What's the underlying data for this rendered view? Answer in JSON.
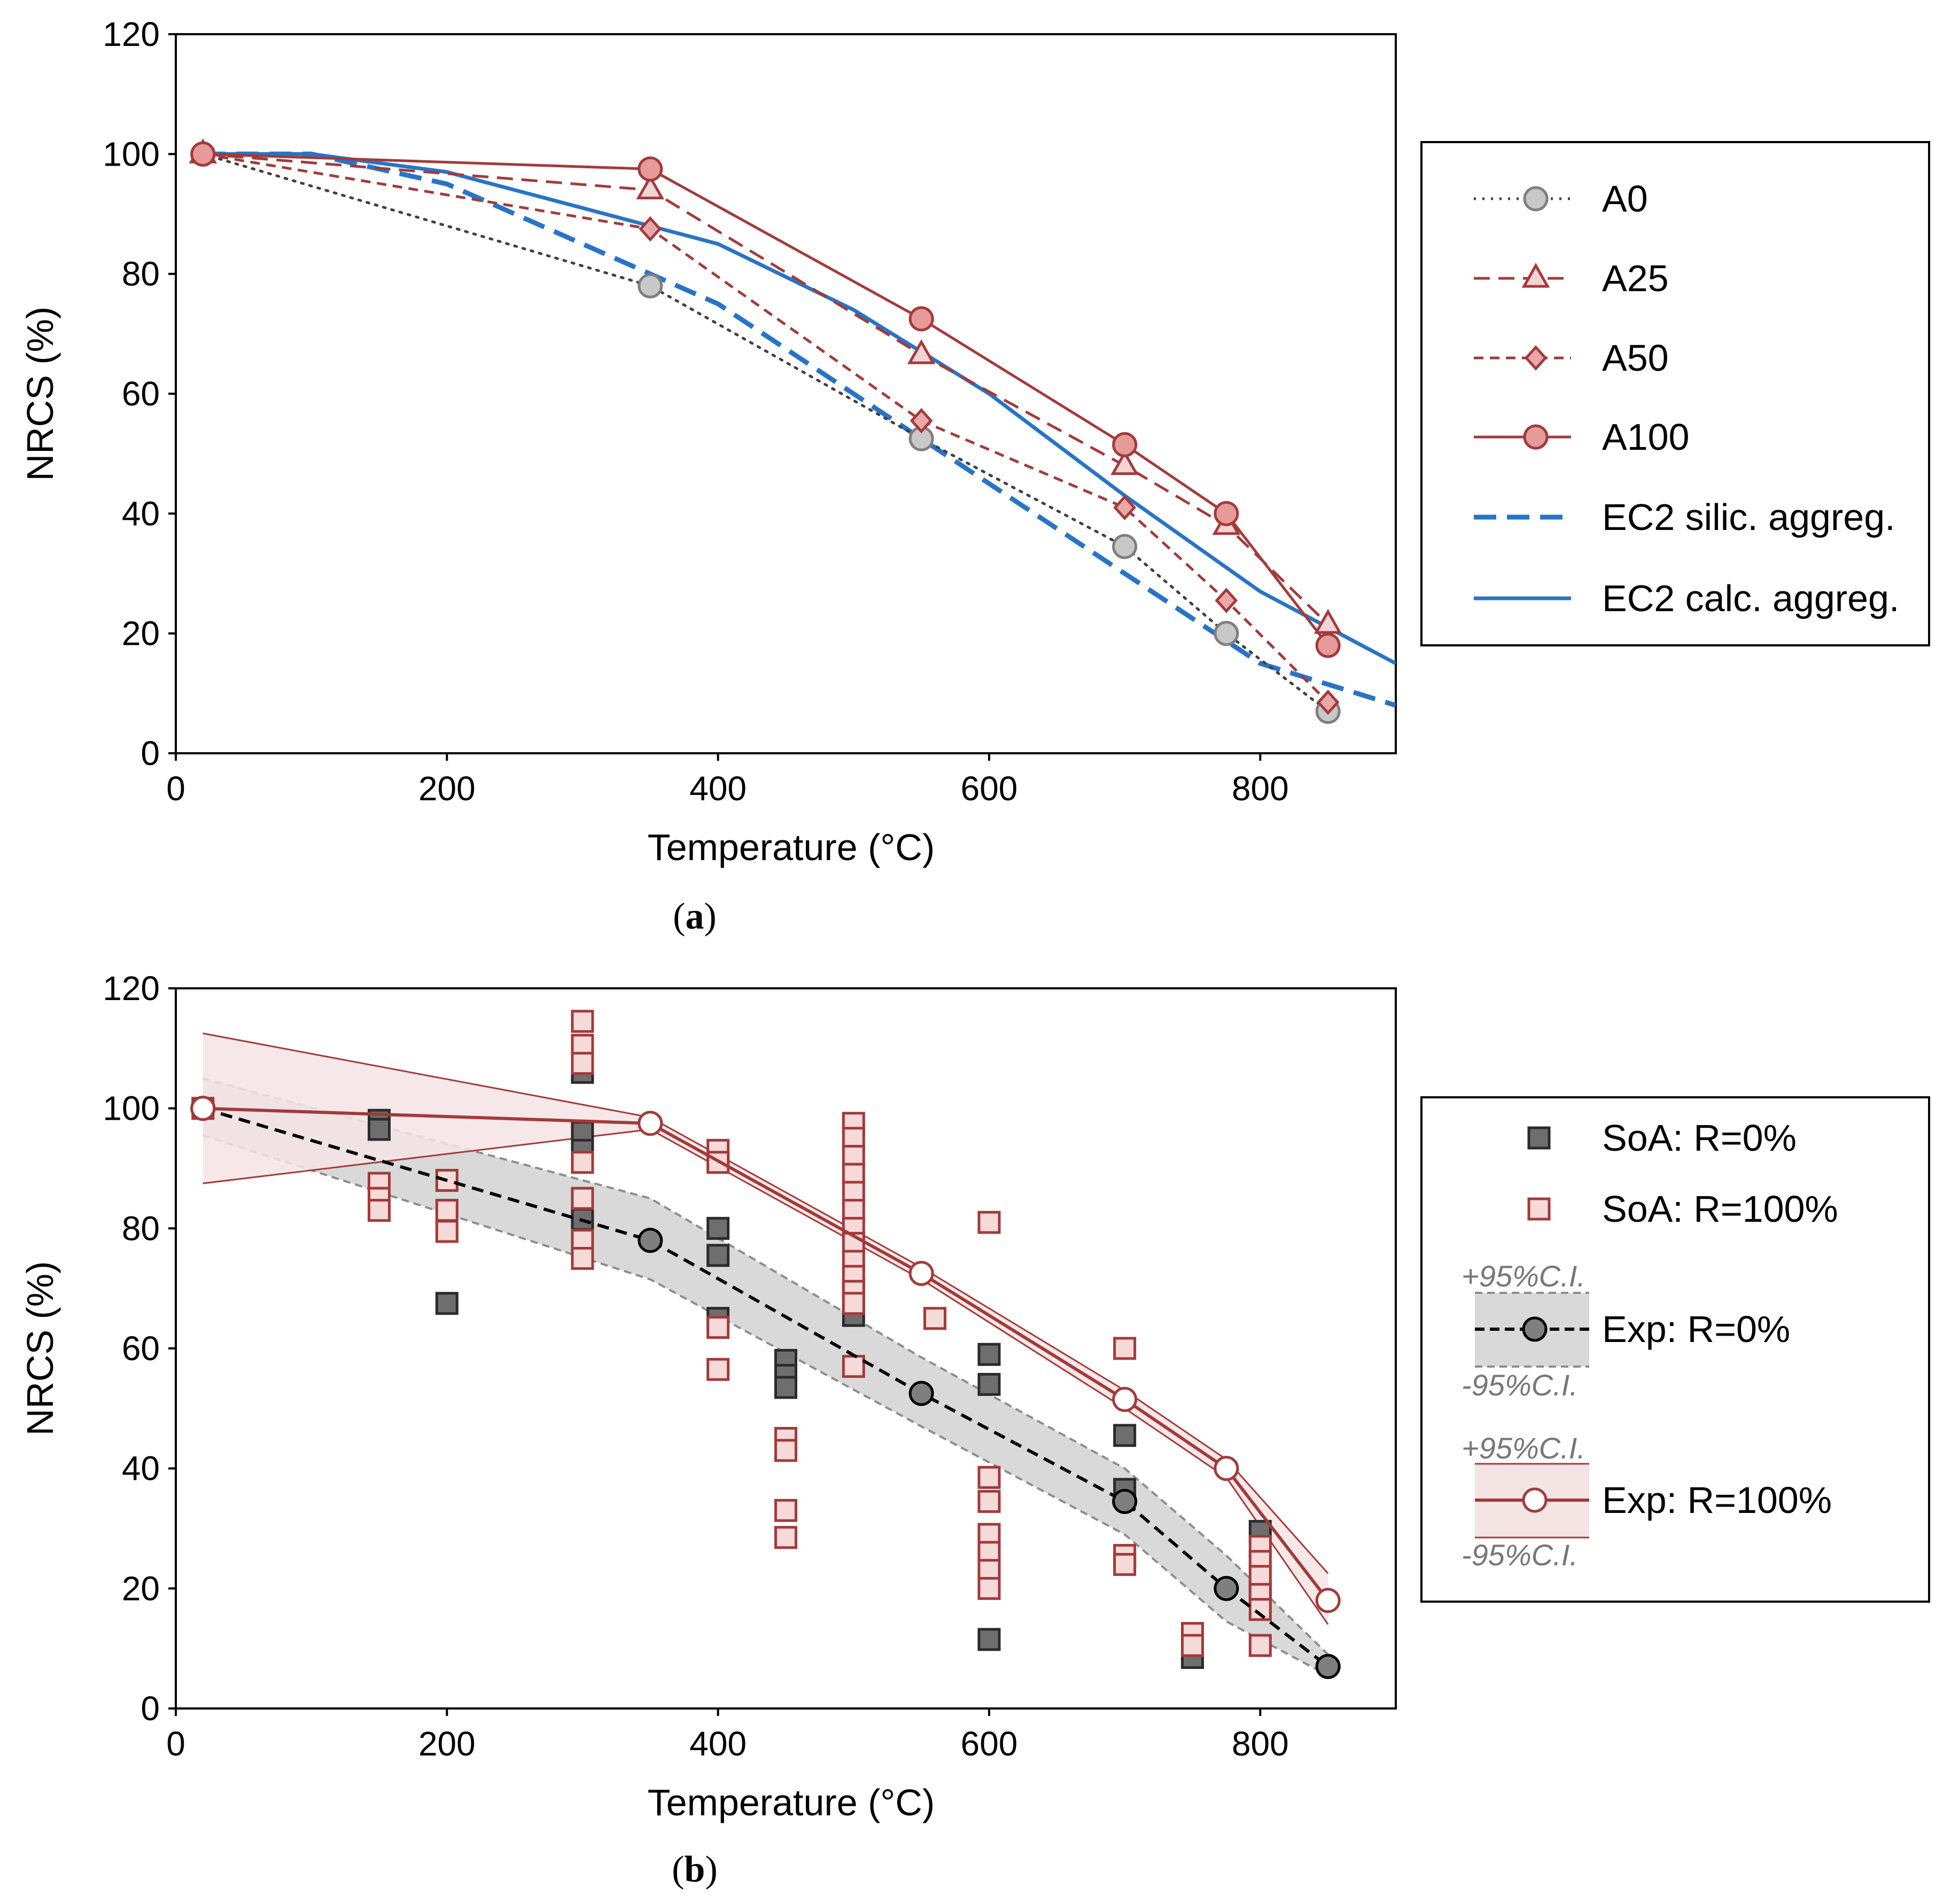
{
  "chart_data": [
    {
      "type": "line",
      "panel": "a",
      "caption": "(a)",
      "caption_letter": "a",
      "xlabel": "Temperature (°C)",
      "ylabel": "NRCS (%)",
      "xlim": [
        0,
        900
      ],
      "ylim": [
        0,
        120
      ],
      "xticks": [
        0,
        200,
        400,
        600,
        800
      ],
      "yticks": [
        0,
        20,
        40,
        60,
        80,
        100,
        120
      ],
      "legend_position": "right",
      "series": [
        {
          "name": "A0",
          "color": "#404040",
          "marker": "circle",
          "marker_fill": "#c8c8c8",
          "marker_stroke": "#7f7f7f",
          "dash": "dot",
          "x": [
            20,
            350,
            550,
            700,
            775,
            850
          ],
          "y": [
            100,
            78,
            52.5,
            34.5,
            20,
            7
          ]
        },
        {
          "name": "A25",
          "color": "#a33a3a",
          "marker": "triangle",
          "marker_fill": "#f2d4d4",
          "marker_stroke": "#a33a3a",
          "dash": "dash",
          "x": [
            20,
            350,
            550,
            700,
            775,
            850
          ],
          "y": [
            100,
            94,
            66.5,
            48,
            38,
            21.5
          ]
        },
        {
          "name": "A50",
          "color": "#a33a3a",
          "marker": "diamond",
          "marker_fill": "#e9a8a8",
          "marker_stroke": "#a33a3a",
          "dash": "shortdash",
          "x": [
            20,
            350,
            550,
            700,
            775,
            850
          ],
          "y": [
            100,
            87.5,
            55.5,
            41,
            25.5,
            8.5
          ]
        },
        {
          "name": "A100",
          "color": "#a33a3a",
          "marker": "circle",
          "marker_fill": "#e69a9a",
          "marker_stroke": "#a33a3a",
          "dash": "solid",
          "x": [
            20,
            350,
            550,
            700,
            775,
            850
          ],
          "y": [
            100,
            97.5,
            72.5,
            51.5,
            40,
            18
          ]
        },
        {
          "name": "EC2 silic. aggreg.",
          "color": "#2874c6",
          "marker": "none",
          "dash": "longdash",
          "width": 9,
          "x": [
            20,
            100,
            200,
            300,
            400,
            500,
            600,
            700,
            800,
            900
          ],
          "y": [
            100,
            100,
            95,
            85,
            75,
            60,
            45,
            30,
            15,
            8
          ]
        },
        {
          "name": "EC2 calc. aggreg.",
          "color": "#2874c6",
          "marker": "none",
          "dash": "solid",
          "width": 7,
          "x": [
            20,
            100,
            200,
            300,
            400,
            500,
            600,
            700,
            800,
            900
          ],
          "y": [
            100,
            100,
            97,
            91,
            85,
            74,
            60,
            43,
            27,
            15
          ]
        }
      ]
    },
    {
      "type": "scatter",
      "panel": "b",
      "caption": "(b)",
      "caption_letter": "b",
      "xlabel": "Temperature (°C)",
      "ylabel": "NRCS (%)",
      "xlim": [
        0,
        900
      ],
      "ylim": [
        0,
        120
      ],
      "xticks": [
        0,
        200,
        400,
        600,
        800
      ],
      "yticks": [
        0,
        20,
        40,
        60,
        80,
        100,
        120
      ],
      "legend_position": "right",
      "ci_labels": {
        "upper": "+95%C.I.",
        "lower": "-95%C.I."
      },
      "scatter_series": [
        {
          "name": "SoA: R=0%",
          "marker": "square",
          "fill": "#6e6e6e",
          "stroke": "#2b2b2b",
          "points": [
            [
              150,
              98
            ],
            [
              150,
              96.5
            ],
            [
              200,
              67.5
            ],
            [
              300,
              106
            ],
            [
              300,
              96
            ],
            [
              300,
              93
            ],
            [
              300,
              81.5
            ],
            [
              400,
              80
            ],
            [
              400,
              75.5
            ],
            [
              400,
              65
            ],
            [
              450,
              58
            ],
            [
              450,
              55.5
            ],
            [
              450,
              53.5
            ],
            [
              500,
              65.5
            ],
            [
              500,
              70
            ],
            [
              600,
              59
            ],
            [
              600,
              54
            ],
            [
              600,
              11.5
            ],
            [
              700,
              45.5
            ],
            [
              700,
              36.5
            ],
            [
              750,
              8.5
            ],
            [
              800,
              29.5
            ],
            [
              800,
              19.5
            ]
          ]
        },
        {
          "name": "SoA: R=100%",
          "marker": "square",
          "fill": "#f6dada",
          "stroke": "#a33a3a",
          "points": [
            [
              20,
              100
            ],
            [
              150,
              87.5
            ],
            [
              150,
              85
            ],
            [
              150,
              83
            ],
            [
              200,
              88
            ],
            [
              200,
              83
            ],
            [
              200,
              79.5
            ],
            [
              300,
              114.5
            ],
            [
              300,
              110.5
            ],
            [
              300,
              107.5
            ],
            [
              300,
              91
            ],
            [
              300,
              85
            ],
            [
              300,
              78
            ],
            [
              300,
              75
            ],
            [
              400,
              93
            ],
            [
              400,
              91
            ],
            [
              400,
              63.5
            ],
            [
              400,
              56.5
            ],
            [
              450,
              45
            ],
            [
              450,
              43
            ],
            [
              450,
              33
            ],
            [
              450,
              28.5
            ],
            [
              500,
              97.5
            ],
            [
              500,
              95
            ],
            [
              500,
              92
            ],
            [
              500,
              89
            ],
            [
              500,
              86
            ],
            [
              500,
              83
            ],
            [
              500,
              80
            ],
            [
              500,
              77.5
            ],
            [
              500,
              74.5
            ],
            [
              500,
              72
            ],
            [
              500,
              69.5
            ],
            [
              500,
              67.5
            ],
            [
              500,
              57
            ],
            [
              560,
              65
            ],
            [
              600,
              81
            ],
            [
              600,
              38.5
            ],
            [
              600,
              34.5
            ],
            [
              600,
              29
            ],
            [
              600,
              26
            ],
            [
              600,
              23
            ],
            [
              600,
              20
            ],
            [
              700,
              60
            ],
            [
              700,
              25.5
            ],
            [
              700,
              24
            ],
            [
              750,
              12.5
            ],
            [
              750,
              10.5
            ],
            [
              800,
              27
            ],
            [
              800,
              24.5
            ],
            [
              800,
              22
            ],
            [
              800,
              19
            ],
            [
              800,
              16.5
            ],
            [
              800,
              10.5
            ]
          ]
        }
      ],
      "series": [
        {
          "name": "Exp: R=0%",
          "color": "#000000",
          "marker": "circle",
          "marker_fill": "#7f7f7f",
          "dash": "dash",
          "x": [
            20,
            350,
            550,
            700,
            775,
            850
          ],
          "y": [
            100,
            78,
            52.5,
            34.5,
            20,
            7
          ],
          "ci_upper": [
            105,
            85,
            58.5,
            40,
            25.5,
            9
          ],
          "ci_lower": [
            95.5,
            71.5,
            47,
            29,
            14.5,
            5.5
          ],
          "band_color": "#d9d9d9"
        },
        {
          "name": "Exp: R=100%",
          "color": "#a33a3a",
          "marker": "circle",
          "marker_fill": "#ffffff",
          "dash": "solid",
          "x": [
            20,
            350,
            550,
            700,
            775,
            850
          ],
          "y": [
            100,
            97.5,
            72.5,
            51.5,
            40,
            18
          ],
          "ci_upper": [
            112.5,
            98.5,
            73.5,
            53,
            41.5,
            22.5
          ],
          "ci_lower": [
            87.5,
            96.5,
            71.5,
            50,
            38.5,
            14
          ],
          "band_color": "#f5e4e4"
        }
      ]
    }
  ]
}
